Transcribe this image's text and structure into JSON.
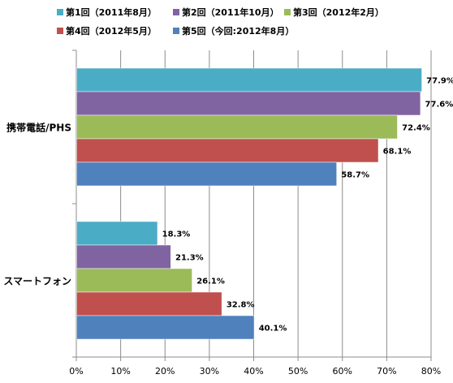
{
  "chart_data": {
    "type": "bar",
    "orientation": "horizontal",
    "categories": [
      "携帯電話/PHS",
      "スマートフォン"
    ],
    "series": [
      {
        "name": "第1回（2011年8月）",
        "color": "#4bacc6",
        "values": [
          77.9,
          18.3
        ],
        "labels": [
          "77.9%",
          "18.3%"
        ]
      },
      {
        "name": "第2回（2011年10月）",
        "color": "#8064a2",
        "values": [
          77.6,
          21.3
        ],
        "labels": [
          "77.6%",
          "21.3%"
        ]
      },
      {
        "name": "第3回（2012年2月）",
        "color": "#9bbb59",
        "values": [
          72.4,
          26.1
        ],
        "labels": [
          "72.4%",
          "26.1%"
        ]
      },
      {
        "name": "第4回（2012年5月）",
        "color": "#c0504d",
        "values": [
          68.1,
          32.8
        ],
        "labels": [
          "68.1%",
          "32.8%"
        ]
      },
      {
        "name": "第5回（今回:2012年8月）",
        "color": "#4f81bd",
        "values": [
          58.7,
          40.1
        ],
        "labels": [
          "58.7%",
          "40.1%"
        ]
      }
    ],
    "x_ticks": [
      "0%",
      "10%",
      "20%",
      "30%",
      "40%",
      "50%",
      "60%",
      "70%",
      "80%"
    ],
    "xlim": [
      0,
      80
    ],
    "grid": true,
    "legend_position": "top",
    "title": "",
    "xlabel": "",
    "ylabel": ""
  }
}
